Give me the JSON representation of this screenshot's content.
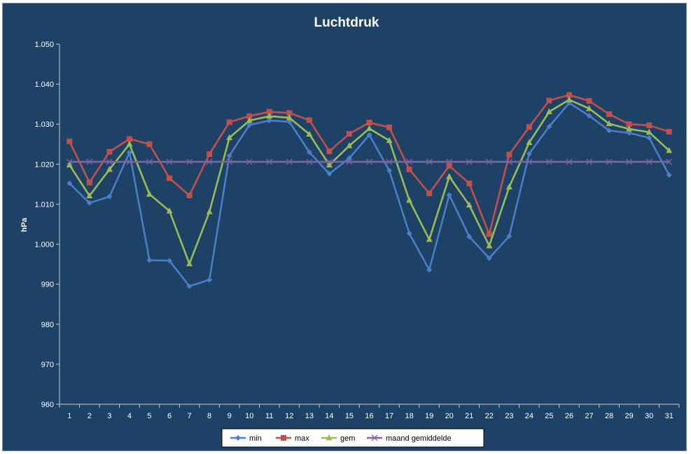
{
  "chart_data": {
    "type": "line",
    "title": "Luchtdruk",
    "xlabel": "",
    "ylabel": "hPa",
    "ylim": [
      960,
      1050
    ],
    "yticks": [
      960,
      970,
      980,
      990,
      1000,
      1010,
      1020,
      1030,
      1040,
      1050
    ],
    "ytick_labels": [
      "960",
      "970",
      "980",
      "990",
      "1.000",
      "1.010",
      "1.020",
      "1.030",
      "1.040",
      "1.050"
    ],
    "categories": [
      "1",
      "2",
      "3",
      "4",
      "5",
      "6",
      "7",
      "8",
      "9",
      "10",
      "11",
      "12",
      "13",
      "14",
      "15",
      "16",
      "17",
      "18",
      "19",
      "20",
      "21",
      "22",
      "23",
      "24",
      "25",
      "26",
      "27",
      "28",
      "29",
      "30",
      "31"
    ],
    "grid": false,
    "legend_position": "bottom",
    "series": [
      {
        "name": "min",
        "color": "#4a7ec7",
        "marker": "diamond",
        "values": [
          1015.2,
          1010.3,
          1011.9,
          1022.9,
          996.0,
          995.9,
          989.5,
          991.1,
          1022.1,
          1029.8,
          1030.9,
          1030.6,
          1023.0,
          1017.6,
          1021.5,
          1027.3,
          1018.4,
          1002.7,
          993.6,
          1012.3,
          1001.9,
          996.5,
          1002.0,
          1022.6,
          1029.4,
          1035.3,
          1032.1,
          1028.4,
          1027.8,
          1026.6,
          1017.3
        ]
      },
      {
        "name": "max",
        "color": "#c0504d",
        "marker": "square",
        "values": [
          1025.7,
          1015.4,
          1023.1,
          1026.3,
          1025.0,
          1016.5,
          1012.2,
          1022.5,
          1030.5,
          1032.0,
          1033.1,
          1032.8,
          1031.0,
          1023.2,
          1027.6,
          1030.4,
          1029.2,
          1018.7,
          1012.7,
          1019.6,
          1015.2,
          1002.5,
          1022.4,
          1029.3,
          1035.9,
          1037.3,
          1035.8,
          1032.5,
          1030.0,
          1029.7,
          1028.1
        ]
      },
      {
        "name": "gem",
        "color": "#9bbb59",
        "marker": "triangle",
        "values": [
          1019.8,
          1012.1,
          1018.7,
          1025.0,
          1012.5,
          1008.3,
          995.1,
          1008.1,
          1026.6,
          1030.9,
          1032.0,
          1031.6,
          1027.5,
          1019.8,
          1024.6,
          1028.9,
          1025.9,
          1011.0,
          1001.2,
          1016.9,
          1009.8,
          999.6,
          1014.3,
          1025.4,
          1033.1,
          1036.1,
          1033.9,
          1030.1,
          1028.8,
          1028.0,
          1023.4
        ]
      },
      {
        "name": "maand gemiddelde",
        "color": "#8064a2",
        "marker": "x",
        "values": [
          1020.6,
          1020.6,
          1020.6,
          1020.6,
          1020.6,
          1020.6,
          1020.6,
          1020.6,
          1020.6,
          1020.6,
          1020.6,
          1020.6,
          1020.6,
          1020.6,
          1020.6,
          1020.6,
          1020.6,
          1020.6,
          1020.6,
          1020.6,
          1020.6,
          1020.6,
          1020.6,
          1020.6,
          1020.6,
          1020.6,
          1020.6,
          1020.6,
          1020.6,
          1020.6,
          1020.6
        ]
      }
    ]
  }
}
